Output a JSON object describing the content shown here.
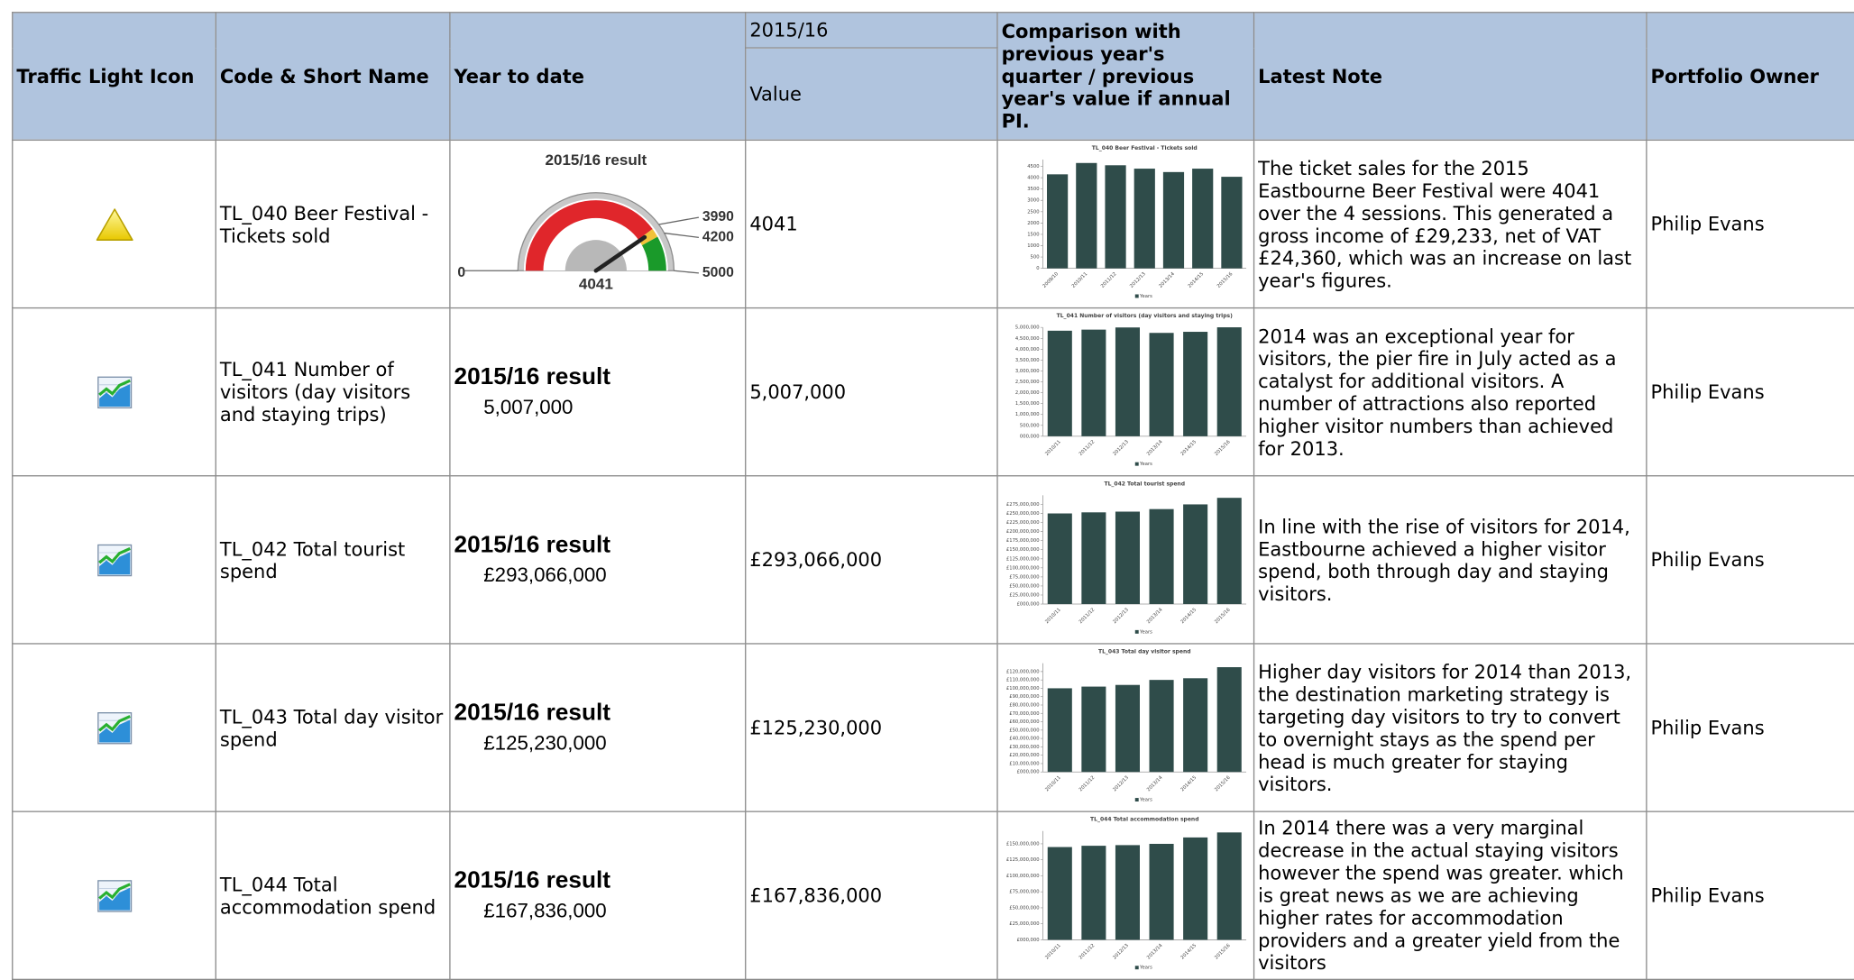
{
  "table": {
    "headers": [
      "Traffic Light Icon",
      "Code & Short Name",
      "Year to date",
      "2015/16",
      "Value",
      "Comparison with previous year's quarter / previous year's value if annual PI.",
      "Latest Note",
      "Portfolio Owner"
    ],
    "rows": [
      {
        "name": "TL_040 Beer Festival - Tickets sold",
        "value": "4041",
        "note": "The ticket sales for the 2015 Eastbourne Beer Festival were 4041 over the 4 sessions. This generated a gross income of £29,233, net of VAT £24,360, which was an increase on last year's figures.",
        "owner": "Philip Evans"
      },
      {
        "name": "TL_041 Number of visitors (day visitors and staying trips)",
        "ytd_title": "2015/16 result",
        "ytd_value": "5,007,000",
        "value": "5,007,000",
        "note": "2014 was an exceptional year for visitors, the pier fire in July acted as a catalyst for additional visitors. A number of attractions also reported higher visitor numbers than achieved for 2013.",
        "owner": "Philip Evans"
      },
      {
        "name": "TL_042 Total tourist spend",
        "ytd_title": "2015/16 result",
        "ytd_value": "£293,066,000",
        "value": "£293,066,000",
        "note": "In line with the rise of visitors for 2014, Eastbourne achieved a higher visitor spend, both through day and staying visitors.",
        "owner": "Philip Evans"
      },
      {
        "name": "TL_043 Total day visitor spend",
        "ytd_title": "2015/16 result",
        "ytd_value": "£125,230,000",
        "value": "£125,230,000",
        "note": "Higher day visitors for 2014 than 2013, the destination marketing strategy is targeting day visitors to try to convert to overnight stays as the spend per head is much greater for staying visitors.",
        "owner": "Philip Evans"
      },
      {
        "name": "TL_044 Total accommodation spend",
        "ytd_title": "2015/16 result",
        "ytd_value": "£167,836,000",
        "value": "£167,836,000",
        "note": "In 2014 there was a very marginal decrease in the actual staying visitors however the spend was greater. which is great news as we are achieving higher rates for accommodation providers and a greater yield from the visitors",
        "owner": "Philip Evans"
      }
    ]
  },
  "chart_data": [
    {
      "type": "gauge",
      "title": "2015/16 result",
      "value": 4041,
      "ylim": [
        0,
        5000
      ],
      "yticks": [
        0,
        3990,
        4200,
        5000
      ],
      "colors": [
        "#e0262b",
        "#f2c23a",
        "#1a9a2a"
      ]
    },
    {
      "type": "bar",
      "title": "TL_040 Beer Festival - Tickets sold",
      "series_name": "Years",
      "color": "#2f4c4a",
      "categories": [
        "2009/10",
        "2010/11",
        "2011/12",
        "2012/13",
        "2013/14",
        "2014/15",
        "2015/16"
      ],
      "values": [
        4150,
        4650,
        4550,
        4400,
        4250,
        4400,
        4041
      ],
      "ylim": [
        0,
        4800
      ],
      "yticks": [
        0,
        500,
        1000,
        1500,
        2000,
        2500,
        3000,
        3500,
        4000,
        4500
      ]
    },
    {
      "type": "bar",
      "title": "TL_041 Number of visitors (day visitors and staying trips)",
      "series_name": "Years",
      "color": "#2f4c4a",
      "categories": [
        "2010/11",
        "2011/12",
        "2012/13",
        "2013/14",
        "2014/15",
        "2015/16"
      ],
      "values": [
        4850000,
        4900000,
        5000000,
        4750000,
        4800000,
        5007000
      ],
      "ylim": [
        0,
        5000000
      ],
      "yticks": [
        {
          "value": 0,
          "label": "000,000"
        },
        {
          "value": 500000,
          "label": "500,000"
        },
        {
          "value": 1000000,
          "label": "1,000,000"
        },
        {
          "value": 1500000,
          "label": "1,500,000"
        },
        {
          "value": 2000000,
          "label": "2,000,000"
        },
        {
          "value": 2500000,
          "label": "2,500,000"
        },
        {
          "value": 3000000,
          "label": "3,000,000"
        },
        {
          "value": 3500000,
          "label": "3,500,000"
        },
        {
          "value": 4000000,
          "label": "4,000,000"
        },
        {
          "value": 4500000,
          "label": "4,500,000"
        },
        {
          "value": 5000000,
          "label": "5,000,000"
        }
      ]
    },
    {
      "type": "bar",
      "title": "TL_042 Total tourist spend",
      "series_name": "Years",
      "color": "#2f4c4a",
      "categories": [
        "2010/11",
        "2011/12",
        "2012/13",
        "2013/14",
        "2014/15",
        "2015/16"
      ],
      "values": [
        250000000,
        253000000,
        255000000,
        262000000,
        275000000,
        293066000
      ],
      "ylim": [
        0,
        300000000
      ],
      "yticks": [
        {
          "value": 0,
          "label": "£000,000"
        },
        {
          "value": 25000000,
          "label": "£25,000,000"
        },
        {
          "value": 50000000,
          "label": "£50,000,000"
        },
        {
          "value": 75000000,
          "label": "£75,000,000"
        },
        {
          "value": 100000000,
          "label": "£100,000,000"
        },
        {
          "value": 125000000,
          "label": "£125,000,000"
        },
        {
          "value": 150000000,
          "label": "£150,000,000"
        },
        {
          "value": 175000000,
          "label": "£175,000,000"
        },
        {
          "value": 200000000,
          "label": "£200,000,000"
        },
        {
          "value": 225000000,
          "label": "£225,000,000"
        },
        {
          "value": 250000000,
          "label": "£250,000,000"
        },
        {
          "value": 275000000,
          "label": "£275,000,000"
        }
      ]
    },
    {
      "type": "bar",
      "title": "TL_043 Total day visitor spend",
      "series_name": "Years",
      "color": "#2f4c4a",
      "categories": [
        "2010/11",
        "2011/12",
        "2012/13",
        "2013/14",
        "2014/15",
        "2015/16"
      ],
      "values": [
        100000000,
        102000000,
        104000000,
        110000000,
        112000000,
        125230000
      ],
      "ylim": [
        0,
        130000000
      ],
      "yticks": [
        {
          "value": 0,
          "label": "£000,000"
        },
        {
          "value": 10000000,
          "label": "£10,000,000"
        },
        {
          "value": 20000000,
          "label": "£20,000,000"
        },
        {
          "value": 30000000,
          "label": "£30,000,000"
        },
        {
          "value": 40000000,
          "label": "£40,000,000"
        },
        {
          "value": 50000000,
          "label": "£50,000,000"
        },
        {
          "value": 60000000,
          "label": "£60,000,000"
        },
        {
          "value": 70000000,
          "label": "£70,000,000"
        },
        {
          "value": 80000000,
          "label": "£80,000,000"
        },
        {
          "value": 90000000,
          "label": "£90,000,000"
        },
        {
          "value": 100000000,
          "label": "£100,000,000"
        },
        {
          "value": 110000000,
          "label": "£110,000,000"
        },
        {
          "value": 120000000,
          "label": "£120,000,000"
        }
      ]
    },
    {
      "type": "bar",
      "title": "TL_044 Total accommodation spend",
      "series_name": "Years",
      "color": "#2f4c4a",
      "categories": [
        "2010/11",
        "2011/12",
        "2012/13",
        "2013/14",
        "2014/15",
        "2015/16"
      ],
      "values": [
        145000000,
        147000000,
        148000000,
        150000000,
        160000000,
        167836000
      ],
      "ylim": [
        0,
        170000000
      ],
      "yticks": [
        {
          "value": 0,
          "label": "£000,000"
        },
        {
          "value": 25000000,
          "label": "£25,000,000"
        },
        {
          "value": 50000000,
          "label": "£50,000,000"
        },
        {
          "value": 75000000,
          "label": "£75,000,000"
        },
        {
          "value": 100000000,
          "label": "£100,000,000"
        },
        {
          "value": 125000000,
          "label": "£125,000,000"
        },
        {
          "value": 150000000,
          "label": "£150,000,000"
        }
      ]
    }
  ]
}
